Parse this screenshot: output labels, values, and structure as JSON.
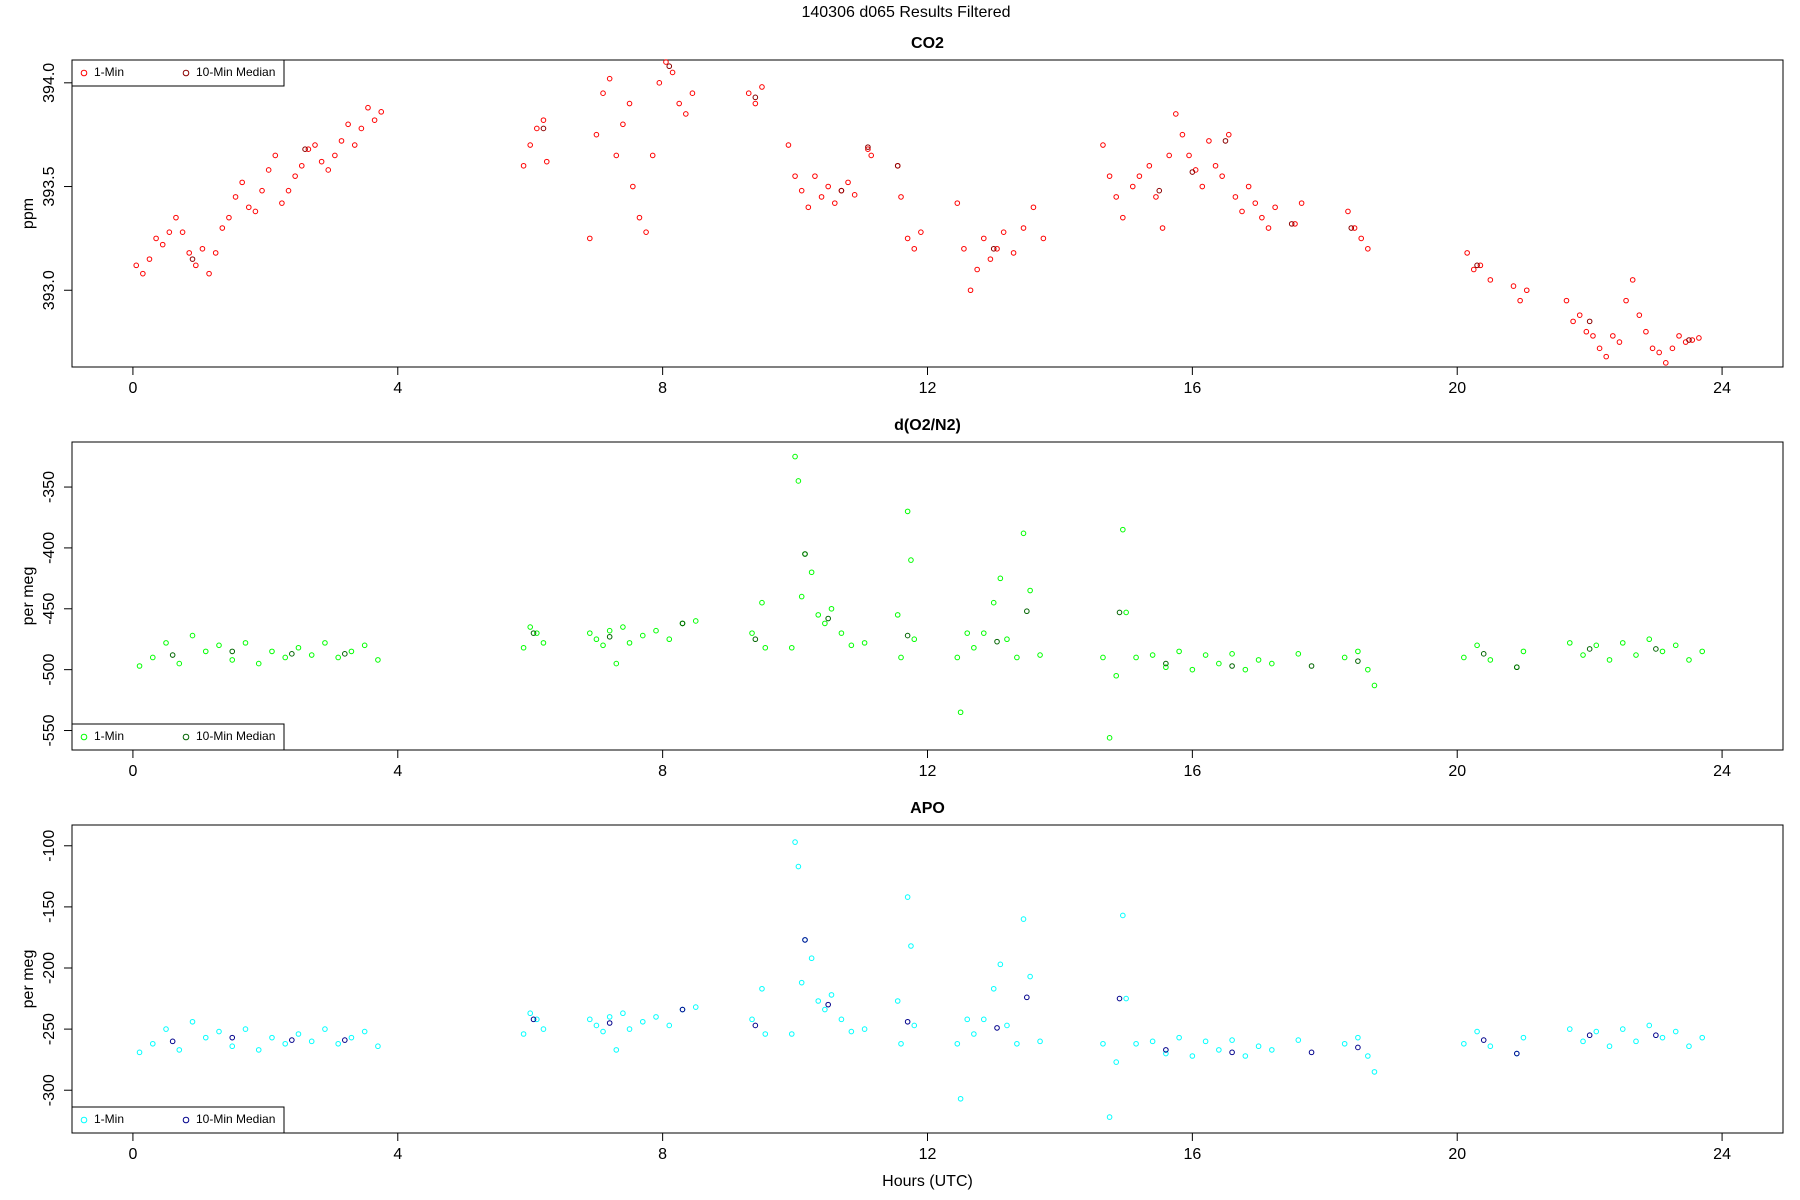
{
  "title": "140306   d065   Results Filtered",
  "chart_data": [
    {
      "type": "scatter",
      "title": "CO2",
      "ylabel": "ppm",
      "legend": "top-left",
      "xlim": [
        -0.92,
        24.92
      ],
      "xticks": [
        0,
        4,
        8,
        12,
        16,
        20,
        24
      ],
      "ylim": [
        392.63,
        394.11
      ],
      "yticks": [
        {
          "value": 393,
          "label": "393.0"
        },
        {
          "value": 393.5,
          "label": "393.5"
        },
        {
          "value": 394,
          "label": "394.0"
        }
      ],
      "series": [
        {
          "name": "1-Min",
          "color": "#ff0000",
          "x": [
            0.05,
            0.15,
            0.25,
            0.35,
            0.45,
            0.55,
            0.65,
            0.75,
            0.85,
            0.95,
            1.05,
            1.15,
            1.25,
            1.35,
            1.45,
            1.55,
            1.65,
            1.75,
            1.85,
            1.95,
            2.05,
            2.15,
            2.25,
            2.35,
            2.45,
            2.55,
            2.65,
            2.75,
            2.85,
            2.95,
            3.05,
            3.15,
            3.25,
            3.35,
            3.45,
            3.55,
            3.65,
            3.75,
            5.9,
            6.0,
            6.1,
            6.2,
            6.25,
            6.9,
            7.0,
            7.1,
            7.2,
            7.3,
            7.4,
            7.5,
            7.55,
            7.65,
            7.75,
            7.85,
            7.95,
            8.05,
            8.15,
            8.25,
            8.35,
            8.45,
            9.3,
            9.4,
            9.5,
            9.9,
            10.0,
            10.1,
            10.2,
            10.3,
            10.4,
            10.5,
            10.6,
            10.7,
            10.8,
            10.9,
            11.1,
            11.15,
            11.55,
            11.6,
            11.7,
            11.8,
            11.9,
            12.45,
            12.55,
            12.65,
            12.75,
            12.85,
            12.95,
            13.05,
            13.15,
            13.3,
            13.45,
            13.6,
            13.75,
            14.65,
            14.75,
            14.85,
            14.95,
            15.1,
            15.2,
            15.35,
            15.45,
            15.55,
            15.65,
            15.75,
            15.85,
            15.95,
            16.05,
            16.15,
            16.25,
            16.35,
            16.45,
            16.55,
            16.65,
            16.75,
            16.85,
            16.95,
            17.05,
            17.15,
            17.25,
            17.55,
            17.65,
            18.35,
            18.45,
            18.55,
            18.65,
            20.15,
            20.25,
            20.35,
            20.5,
            20.85,
            20.95,
            21.05,
            21.65,
            21.75,
            21.85,
            21.95,
            22.05,
            22.15,
            22.25,
            22.35,
            22.45,
            22.55,
            22.65,
            22.75,
            22.85,
            22.95,
            23.05,
            23.15,
            23.25,
            23.35,
            23.45,
            23.55,
            23.65
          ],
          "values": [
            393.12,
            393.08,
            393.15,
            393.25,
            393.22,
            393.28,
            393.35,
            393.28,
            393.18,
            393.12,
            393.2,
            393.08,
            393.18,
            393.3,
            393.35,
            393.45,
            393.52,
            393.4,
            393.38,
            393.48,
            393.58,
            393.65,
            393.42,
            393.48,
            393.55,
            393.6,
            393.68,
            393.7,
            393.62,
            393.58,
            393.65,
            393.72,
            393.8,
            393.7,
            393.78,
            393.88,
            393.82,
            393.86,
            393.6,
            393.7,
            393.78,
            393.82,
            393.62,
            393.25,
            393.75,
            393.95,
            394.02,
            393.65,
            393.8,
            393.9,
            393.5,
            393.35,
            393.28,
            393.65,
            394.0,
            394.1,
            394.05,
            393.9,
            393.85,
            393.95,
            393.95,
            393.9,
            393.98,
            393.7,
            393.55,
            393.48,
            393.4,
            393.55,
            393.45,
            393.5,
            393.42,
            393.48,
            393.52,
            393.46,
            393.68,
            393.65,
            393.6,
            393.45,
            393.25,
            393.2,
            393.28,
            393.42,
            393.2,
            393.0,
            393.1,
            393.25,
            393.15,
            393.2,
            393.28,
            393.18,
            393.3,
            393.4,
            393.25,
            393.7,
            393.55,
            393.45,
            393.35,
            393.5,
            393.55,
            393.6,
            393.45,
            393.3,
            393.65,
            393.85,
            393.75,
            393.65,
            393.58,
            393.5,
            393.72,
            393.6,
            393.55,
            393.75,
            393.45,
            393.38,
            393.5,
            393.42,
            393.35,
            393.3,
            393.4,
            393.32,
            393.42,
            393.38,
            393.3,
            393.25,
            393.2,
            393.18,
            393.1,
            393.12,
            393.05,
            393.02,
            392.95,
            393.0,
            392.95,
            392.85,
            392.88,
            392.8,
            392.78,
            392.72,
            392.68,
            392.78,
            392.75,
            392.95,
            393.05,
            392.88,
            392.8,
            392.72,
            392.7,
            392.65,
            392.72,
            392.78,
            392.75,
            392.76,
            392.77
          ]
        },
        {
          "name": "10-Min Median",
          "color": "#8b0000",
          "x": [
            0.9,
            2.6,
            6.2,
            8.1,
            9.4,
            10.7,
            11.1,
            11.55,
            13.0,
            15.5,
            16.0,
            16.5,
            17.5,
            18.4,
            20.3,
            22.0,
            23.5
          ],
          "values": [
            393.15,
            393.68,
            393.78,
            394.08,
            393.93,
            393.48,
            393.69,
            393.6,
            393.2,
            393.48,
            393.57,
            393.72,
            393.32,
            393.3,
            393.12,
            392.85,
            392.76
          ]
        }
      ]
    },
    {
      "type": "scatter",
      "title": "d(O2/N2)",
      "ylabel": "per meg",
      "legend": "bottom-left",
      "xlim": [
        -0.92,
        24.92
      ],
      "xticks": [
        0,
        4,
        8,
        12,
        16,
        20,
        24
      ],
      "ylim": [
        -566,
        -313
      ],
      "yticks": [
        -550,
        -500,
        -450,
        -400,
        -350
      ],
      "series": [
        {
          "name": "1-Min",
          "color": "#00ff00",
          "x": [
            0.1,
            0.3,
            0.5,
            0.7,
            0.9,
            1.1,
            1.3,
            1.5,
            1.7,
            1.9,
            2.1,
            2.3,
            2.5,
            2.7,
            2.9,
            3.1,
            3.3,
            3.5,
            3.7,
            5.9,
            6.0,
            6.1,
            6.2,
            6.9,
            7.0,
            7.1,
            7.2,
            7.3,
            7.4,
            7.5,
            7.7,
            7.9,
            8.1,
            8.3,
            8.5,
            9.35,
            9.5,
            9.55,
            9.95,
            10.0,
            10.05,
            10.1,
            10.15,
            10.25,
            10.35,
            10.45,
            10.55,
            10.7,
            10.85,
            11.05,
            11.55,
            11.6,
            11.7,
            11.75,
            11.8,
            12.45,
            12.5,
            12.6,
            12.7,
            12.85,
            13.0,
            13.1,
            13.2,
            13.35,
            13.45,
            13.55,
            13.7,
            14.65,
            14.75,
            14.85,
            14.95,
            15.0,
            15.15,
            15.4,
            15.6,
            15.8,
            16.0,
            16.2,
            16.4,
            16.6,
            16.8,
            17.0,
            17.2,
            17.6,
            18.3,
            18.5,
            18.65,
            18.75,
            20.1,
            20.3,
            20.5,
            20.9,
            21.0,
            21.7,
            21.9,
            22.1,
            22.3,
            22.5,
            22.7,
            22.9,
            23.1,
            23.3,
            23.5,
            23.7
          ],
          "values": [
            -497,
            -490,
            -478,
            -495,
            -472,
            -485,
            -480,
            -492,
            -478,
            -495,
            -485,
            -490,
            -482,
            -488,
            -478,
            -490,
            -485,
            -480,
            -492,
            -482,
            -465,
            -470,
            -478,
            -470,
            -475,
            -480,
            -468,
            -495,
            -465,
            -478,
            -472,
            -468,
            -475,
            -462,
            -460,
            -470,
            -445,
            -482,
            -482,
            -325,
            -345,
            -440,
            -405,
            -420,
            -455,
            -462,
            -450,
            -470,
            -480,
            -478,
            -455,
            -490,
            -370,
            -410,
            -475,
            -490,
            -535,
            -470,
            -482,
            -470,
            -445,
            -425,
            -475,
            -490,
            -388,
            -435,
            -488,
            -490,
            -556,
            -505,
            -385,
            -453,
            -490,
            -488,
            -498,
            -485,
            -500,
            -488,
            -495,
            -487,
            -500,
            -492,
            -495,
            -487,
            -490,
            -485,
            -500,
            -513,
            -490,
            -480,
            -492,
            -498,
            -485,
            -478,
            -488,
            -480,
            -492,
            -478,
            -488,
            -475,
            -485,
            -480,
            -492,
            -485
          ]
        },
        {
          "name": "10-Min Median",
          "color": "#006400",
          "x": [
            0.6,
            1.5,
            2.4,
            3.2,
            6.05,
            7.2,
            8.3,
            9.4,
            10.15,
            10.5,
            11.7,
            13.05,
            13.5,
            14.9,
            15.6,
            16.6,
            17.8,
            18.5,
            20.4,
            20.9,
            22.0,
            23.0
          ],
          "values": [
            -488,
            -485,
            -487,
            -487,
            -470,
            -473,
            -462,
            -475,
            -405,
            -458,
            -472,
            -477,
            -452,
            -453,
            -495,
            -497,
            -497,
            -493,
            -487,
            -498,
            -483,
            -483
          ]
        }
      ]
    },
    {
      "type": "scatter",
      "title": "APO",
      "ylabel": "per meg",
      "xlabel": "Hours (UTC)",
      "legend": "bottom-left",
      "xlim": [
        -0.92,
        24.92
      ],
      "xticks": [
        0,
        4,
        8,
        12,
        16,
        20,
        24
      ],
      "ylim": [
        -335,
        -83
      ],
      "yticks": [
        -300,
        -250,
        -200,
        -150,
        -100
      ],
      "series": [
        {
          "name": "1-Min",
          "color": "#00ffff",
          "x": [
            0.1,
            0.3,
            0.5,
            0.7,
            0.9,
            1.1,
            1.3,
            1.5,
            1.7,
            1.9,
            2.1,
            2.3,
            2.5,
            2.7,
            2.9,
            3.1,
            3.3,
            3.5,
            3.7,
            5.9,
            6.0,
            6.1,
            6.2,
            6.9,
            7.0,
            7.1,
            7.2,
            7.3,
            7.4,
            7.5,
            7.7,
            7.9,
            8.1,
            8.3,
            8.5,
            9.35,
            9.5,
            9.55,
            9.95,
            10.0,
            10.05,
            10.1,
            10.15,
            10.25,
            10.35,
            10.45,
            10.55,
            10.7,
            10.85,
            11.05,
            11.55,
            11.6,
            11.7,
            11.75,
            11.8,
            12.45,
            12.5,
            12.6,
            12.7,
            12.85,
            13.0,
            13.1,
            13.2,
            13.35,
            13.45,
            13.55,
            13.7,
            14.65,
            14.75,
            14.85,
            14.95,
            15.0,
            15.15,
            15.4,
            15.6,
            15.8,
            16.0,
            16.2,
            16.4,
            16.6,
            16.8,
            17.0,
            17.2,
            17.6,
            18.3,
            18.5,
            18.65,
            18.75,
            20.1,
            20.3,
            20.5,
            20.9,
            21.0,
            21.7,
            21.9,
            22.1,
            22.3,
            22.5,
            22.7,
            22.9,
            23.1,
            23.3,
            23.5,
            23.7
          ],
          "values": [
            -269,
            -262,
            -250,
            -267,
            -244,
            -257,
            -252,
            -264,
            -250,
            -267,
            -257,
            -262,
            -254,
            -260,
            -250,
            -262,
            -257,
            -252,
            -264,
            -254,
            -237,
            -242,
            -250,
            -242,
            -247,
            -252,
            -240,
            -267,
            -237,
            -250,
            -244,
            -240,
            -247,
            -234,
            -232,
            -242,
            -217,
            -254,
            -254,
            -97,
            -117,
            -212,
            -177,
            -192,
            -227,
            -234,
            -222,
            -242,
            -252,
            -250,
            -227,
            -262,
            -142,
            -182,
            -247,
            -262,
            -307,
            -242,
            -254,
            -242,
            -217,
            -197,
            -247,
            -262,
            -160,
            -207,
            -260,
            -262,
            -322,
            -277,
            -157,
            -225,
            -262,
            -260,
            -270,
            -257,
            -272,
            -260,
            -267,
            -259,
            -272,
            -264,
            -267,
            -259,
            -262,
            -257,
            -272,
            -285,
            -262,
            -252,
            -264,
            -270,
            -257,
            -250,
            -260,
            -252,
            -264,
            -250,
            -260,
            -247,
            -257,
            -252,
            -264,
            -257
          ]
        },
        {
          "name": "10-Min Median",
          "color": "#00008b",
          "x": [
            0.6,
            1.5,
            2.4,
            3.2,
            6.05,
            7.2,
            8.3,
            9.4,
            10.15,
            10.5,
            11.7,
            13.05,
            13.5,
            14.9,
            15.6,
            16.6,
            17.8,
            18.5,
            20.4,
            20.9,
            22.0,
            23.0
          ],
          "values": [
            -260,
            -257,
            -259,
            -259,
            -242,
            -245,
            -234,
            -247,
            -177,
            -230,
            -244,
            -249,
            -224,
            -225,
            -267,
            -269,
            -269,
            -265,
            -259,
            -270,
            -255,
            -255
          ]
        }
      ]
    }
  ]
}
